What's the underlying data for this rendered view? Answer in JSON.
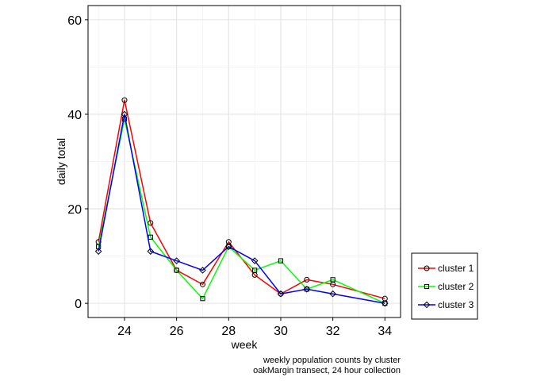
{
  "chart_data": {
    "type": "line",
    "xlabel": "week",
    "ylabel": "daily total",
    "xlim": [
      22.6,
      34.6
    ],
    "ylim": [
      -3,
      63
    ],
    "x_ticks": [
      24,
      26,
      28,
      30,
      32,
      34
    ],
    "y_ticks": [
      0,
      20,
      40,
      60
    ],
    "grid": true,
    "legend_position": "right",
    "caption": [
      "weekly population counts by cluster",
      "oakMargin transect, 24 hour collection"
    ],
    "series": [
      {
        "name": "cluster 1",
        "color": "#ff0000",
        "marker": "circle",
        "x": [
          23,
          24,
          25,
          26,
          27,
          28,
          29,
          30,
          31,
          32,
          34
        ],
        "y": [
          13,
          43,
          17,
          7,
          4,
          13,
          6,
          2,
          5,
          4,
          1
        ]
      },
      {
        "name": "cluster 2",
        "color": "#00ff00",
        "marker": "square",
        "x": [
          23,
          24,
          25,
          26,
          27,
          28,
          29,
          30,
          31,
          32,
          34
        ],
        "y": [
          12,
          39,
          14,
          7,
          1,
          12,
          7,
          9,
          3,
          5,
          0
        ]
      },
      {
        "name": "cluster 3",
        "color": "#0000ff",
        "marker": "diamond",
        "x": [
          23,
          24,
          25,
          26,
          27,
          28,
          29,
          30,
          31,
          32,
          34
        ],
        "y": [
          11,
          40,
          11,
          9,
          7,
          12,
          9,
          2,
          3,
          2,
          0
        ]
      }
    ]
  }
}
